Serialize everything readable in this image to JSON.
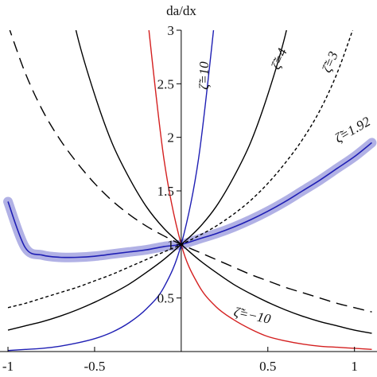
{
  "chart_data": {
    "type": "line",
    "y_label": "da/dx",
    "x": [
      -1,
      -0.9,
      -0.8,
      -0.7,
      -0.6,
      -0.5,
      -0.4,
      -0.3,
      -0.2,
      -0.1,
      0,
      0.1,
      0.2,
      0.3,
      0.4,
      0.5,
      0.6,
      0.7,
      0.8,
      0.9,
      1,
      1.1
    ],
    "xlim": [
      -1.046,
      1.13
    ],
    "ylim": [
      0,
      3
    ],
    "xticks": [
      -1,
      -0.5,
      0.5,
      1
    ],
    "yticks": [
      0.5,
      1,
      1.5,
      2,
      2.5,
      3
    ],
    "series": [
      {
        "name": "ζ̃=10",
        "color": "#1f1fb4",
        "style": "solid",
        "values": [
          0.01,
          0.02,
          0.03,
          0.05,
          0.08,
          0.12,
          0.18,
          0.27,
          0.4,
          0.6,
          1,
          1.8,
          3.2,
          null,
          null,
          null,
          null,
          null,
          null,
          null,
          null,
          null
        ]
      },
      {
        "name": "ζ̃=−10",
        "color": "#d42020",
        "style": "solid",
        "values": [
          null,
          null,
          null,
          null,
          null,
          null,
          null,
          null,
          3.2,
          1.8,
          1,
          0.62,
          0.42,
          0.3,
          0.21,
          0.14,
          0.1,
          0.07,
          0.05,
          0.04,
          0.03,
          0.02
        ]
      },
      {
        "name": "ζ̃=1.92",
        "color": "#1f1fb4",
        "style": "band",
        "values": [
          1.4,
          0.97,
          0.9,
          0.88,
          0.88,
          0.89,
          0.91,
          0.93,
          0.95,
          0.98,
          1,
          1.05,
          1.1,
          1.16,
          1.23,
          1.31,
          1.4,
          1.5,
          1.6,
          1.71,
          1.82,
          1.95
        ]
      },
      {
        "name": "ζ̃=4",
        "color": "#000000",
        "style": "solid",
        "values": [
          0.2,
          0.24,
          0.28,
          0.33,
          0.39,
          0.46,
          0.54,
          0.63,
          0.74,
          0.86,
          1,
          1.15,
          1.35,
          1.62,
          1.95,
          2.4,
          2.95,
          3.7,
          null,
          null,
          null,
          null
        ]
      },
      {
        "color": "#000000",
        "style": "solid",
        "values": [
          null,
          null,
          null,
          3.7,
          2.95,
          2.4,
          1.95,
          1.62,
          1.35,
          1.15,
          1,
          0.86,
          0.74,
          0.63,
          0.54,
          0.46,
          0.39,
          0.33,
          0.28,
          0.24,
          0.2,
          0.17
        ]
      },
      {
        "name": "ζ̃=3",
        "color": "#000000",
        "style": "dotted",
        "values": [
          0.41,
          0.45,
          0.5,
          0.55,
          0.6,
          0.66,
          0.72,
          0.79,
          0.86,
          0.93,
          1,
          1.08,
          1.17,
          1.28,
          1.41,
          1.57,
          1.76,
          1.98,
          2.25,
          2.6,
          3.05,
          null
        ]
      },
      {
        "color": "#000000",
        "style": "dashed",
        "values": [
          3.05,
          2.6,
          2.25,
          1.98,
          1.76,
          1.57,
          1.41,
          1.28,
          1.17,
          1.08,
          1,
          0.93,
          0.86,
          0.79,
          0.72,
          0.66,
          0.6,
          0.55,
          0.5,
          0.45,
          0.41,
          0.37
        ]
      }
    ]
  }
}
